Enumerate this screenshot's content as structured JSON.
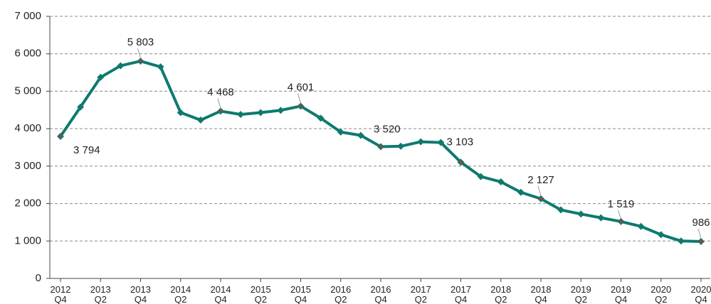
{
  "chart_data": {
    "type": "line",
    "categories": [
      "2012\nQ4",
      null,
      "2013\nQ2",
      null,
      "2013\nQ4",
      null,
      "2014\nQ2",
      null,
      "2014\nQ4",
      null,
      "2015\nQ2",
      null,
      "2015\nQ4",
      null,
      "2016\nQ2",
      null,
      "2016\nQ4",
      null,
      "2017\nQ2",
      null,
      "2017\nQ4",
      null,
      "2018\nQ2",
      null,
      "2018\nQ4",
      null,
      "2019\nQ2",
      null,
      "2019\nQ4",
      null,
      "2020\nQ2",
      null,
      "2020\nQ4"
    ],
    "values": [
      3794,
      4580,
      5370,
      5680,
      5803,
      5650,
      4430,
      4230,
      4468,
      4380,
      4430,
      4490,
      4601,
      4280,
      3910,
      3820,
      3520,
      3530,
      3650,
      3630,
      3103,
      2720,
      2580,
      2300,
      2127,
      1830,
      1720,
      1620,
      1519,
      1390,
      1170,
      1000,
      986
    ],
    "value_labels": [
      "3 794",
      null,
      null,
      null,
      "5 803",
      null,
      null,
      null,
      "4 468",
      null,
      null,
      null,
      "4 601",
      null,
      null,
      null,
      "3 520",
      null,
      null,
      null,
      "3 103",
      null,
      null,
      null,
      "2 127",
      null,
      null,
      null,
      "1 519",
      null,
      null,
      null,
      "986"
    ],
    "color": "#0e7a6e",
    "highlight_color": "#d9262b",
    "ylim": [
      0,
      7000
    ],
    "yticks": [
      0,
      {
        "value": 1000,
        "label": "1 000"
      },
      {
        "value": 2000,
        "label": "2 000"
      },
      {
        "value": 3000,
        "label": "3 000"
      },
      {
        "value": 4000,
        "label": "4 000"
      },
      {
        "value": 5000,
        "label": "5 000"
      },
      {
        "value": 6000,
        "label": "6 000"
      },
      {
        "value": 7000,
        "label": "7 000"
      }
    ],
    "grid": true
  }
}
